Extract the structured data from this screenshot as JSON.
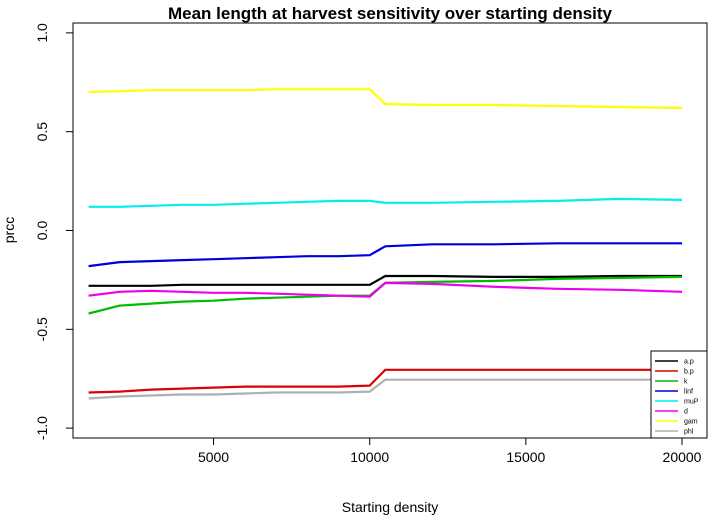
{
  "chart_data": {
    "type": "line",
    "title": "Mean length at harvest sensitivity over starting density",
    "xlabel": "Starting density",
    "ylabel": "prcc",
    "xlim": [
      500,
      20800
    ],
    "ylim": [
      -1.05,
      1.05
    ],
    "xticks": [
      5000,
      10000,
      15000,
      20000
    ],
    "xtick_labels": [
      "5000",
      "10000",
      "15000",
      "20000"
    ],
    "yticks": [
      -1.0,
      -0.5,
      0.0,
      0.5,
      1.0
    ],
    "ytick_labels": [
      "-1.0",
      "-0.5",
      "0.0",
      "0.5",
      "1.0"
    ],
    "grid": false,
    "legend_position": "bottom-right",
    "x": [
      1000,
      2000,
      3000,
      4000,
      5000,
      6000,
      7000,
      8000,
      9000,
      10000,
      10500,
      12000,
      14000,
      16000,
      18000,
      20000
    ],
    "series": [
      {
        "name": "a.p",
        "color": "#000000",
        "values": [
          -0.28,
          -0.28,
          -0.28,
          -0.275,
          -0.275,
          -0.275,
          -0.275,
          -0.275,
          -0.275,
          -0.275,
          -0.23,
          -0.23,
          -0.235,
          -0.235,
          -0.23,
          -0.23
        ]
      },
      {
        "name": "b.p",
        "color": "#dd0000",
        "values": [
          -0.82,
          -0.815,
          -0.805,
          -0.8,
          -0.795,
          -0.79,
          -0.79,
          -0.79,
          -0.79,
          -0.785,
          -0.705,
          -0.705,
          -0.705,
          -0.705,
          -0.705,
          -0.705
        ]
      },
      {
        "name": "k",
        "color": "#00bb00",
        "values": [
          -0.42,
          -0.38,
          -0.37,
          -0.36,
          -0.355,
          -0.345,
          -0.34,
          -0.335,
          -0.33,
          -0.33,
          -0.265,
          -0.26,
          -0.255,
          -0.245,
          -0.24,
          -0.235
        ]
      },
      {
        "name": "linf",
        "color": "#0000dd",
        "values": [
          -0.18,
          -0.16,
          -0.155,
          -0.15,
          -0.145,
          -0.14,
          -0.135,
          -0.13,
          -0.13,
          -0.125,
          -0.08,
          -0.07,
          -0.07,
          -0.065,
          -0.065,
          -0.065
        ]
      },
      {
        "name": "muP",
        "color": "#00eeee",
        "values": [
          0.12,
          0.12,
          0.125,
          0.13,
          0.13,
          0.135,
          0.14,
          0.145,
          0.15,
          0.15,
          0.14,
          0.14,
          0.145,
          0.15,
          0.16,
          0.155
        ]
      },
      {
        "name": "d",
        "color": "#ee00ee",
        "values": [
          -0.33,
          -0.31,
          -0.305,
          -0.31,
          -0.315,
          -0.315,
          -0.32,
          -0.325,
          -0.33,
          -0.335,
          -0.265,
          -0.27,
          -0.285,
          -0.295,
          -0.3,
          -0.31
        ]
      },
      {
        "name": "gam",
        "color": "#ffff00",
        "values": [
          0.7,
          0.705,
          0.71,
          0.71,
          0.71,
          0.71,
          0.715,
          0.715,
          0.715,
          0.715,
          0.64,
          0.635,
          0.635,
          0.63,
          0.625,
          0.62
        ]
      },
      {
        "name": "phl",
        "color": "#b0b0b0",
        "values": [
          -0.85,
          -0.84,
          -0.835,
          -0.83,
          -0.83,
          -0.825,
          -0.82,
          -0.82,
          -0.82,
          -0.815,
          -0.755,
          -0.755,
          -0.755,
          -0.755,
          -0.755,
          -0.755
        ]
      }
    ]
  }
}
